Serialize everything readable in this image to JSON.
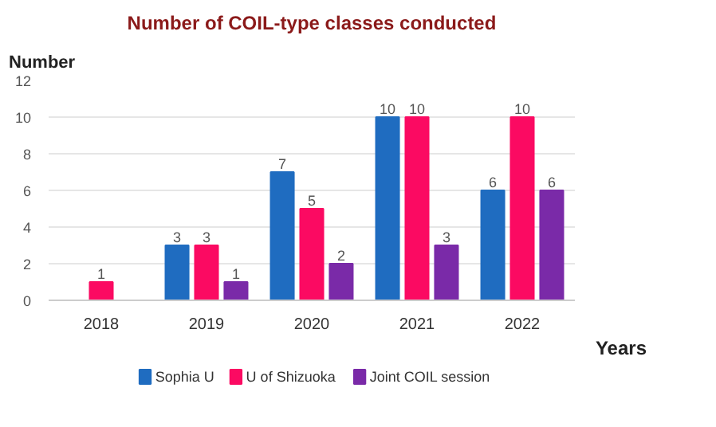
{
  "chart_data": {
    "type": "bar",
    "title": "Number of COIL-type classes conducted",
    "xlabel": "Years",
    "ylabel": "Number",
    "categories": [
      "2018",
      "2019",
      "2020",
      "2021",
      "2022"
    ],
    "series": [
      {
        "name": "Sophia U",
        "color": "#1f6cc0",
        "values": [
          null,
          3,
          7,
          10,
          6
        ]
      },
      {
        "name": "U of Shizuoka",
        "color": "#fb0a62",
        "values": [
          1,
          3,
          5,
          10,
          10
        ]
      },
      {
        "name": "Joint COIL session",
        "color": "#7a2aa8",
        "values": [
          null,
          1,
          2,
          3,
          6
        ]
      }
    ],
    "ylim": [
      0,
      12
    ],
    "yticks": [
      0,
      2,
      4,
      6,
      8,
      10,
      12
    ],
    "grid": "y",
    "legend": "bottom",
    "data_labels": true
  }
}
